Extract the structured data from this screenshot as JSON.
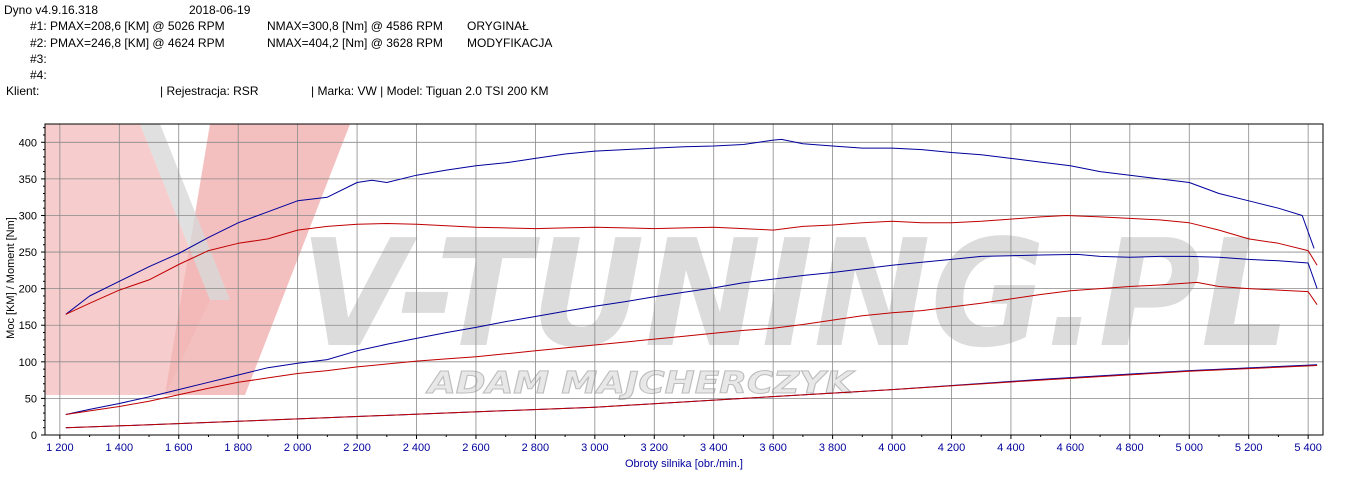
{
  "header": {
    "app_version": "Dyno v4.9.16.318",
    "date": "2018-06-19",
    "runs": [
      {
        "id": "#1:",
        "pmax": "PMAX=208,6 [KM] @ 5026 RPM",
        "nmax": "NMAX=300,8 [Nm] @ 4586 RPM",
        "name": "ORYGINAŁ"
      },
      {
        "id": "#2:",
        "pmax": "PMAX=246,8 [KM] @ 4624 RPM",
        "nmax": "NMAX=404,2 [Nm] @ 3628 RPM",
        "name": "MODYFIKACJA"
      },
      {
        "id": "#3:",
        "pmax": "",
        "nmax": "",
        "name": ""
      },
      {
        "id": "#4:",
        "pmax": "",
        "nmax": "",
        "name": ""
      }
    ],
    "client_label": "Klient:",
    "registration": "| Rejestracja: RSR",
    "vehicle": "| Marka: VW | Model: Tiguan 2.0 TSI 200 KM"
  },
  "watermark": {
    "brand_logo_text": "V-TUNING.PL",
    "tagline": "ADAM MAJCHERCZYK"
  },
  "chart_data": {
    "type": "line",
    "xlabel": "Obroty silnika [obr./min.]",
    "ylabel": "Moc [KM] / Moment [Nm]",
    "xlim": [
      1150,
      5450
    ],
    "ylim": [
      0,
      425
    ],
    "x_ticks": [
      1200,
      1400,
      1600,
      1800,
      2000,
      2200,
      2400,
      2600,
      2800,
      3000,
      3200,
      3400,
      3600,
      3800,
      4000,
      4200,
      4400,
      4600,
      4800,
      5000,
      5200,
      5400
    ],
    "x_tick_labels": [
      "1 200",
      "1 400",
      "1 600",
      "1 800",
      "2 000",
      "2 200",
      "2 400",
      "2 600",
      "2 800",
      "3 000",
      "3 200",
      "3 400",
      "3 600",
      "3 800",
      "4 000",
      "4 200",
      "4 400",
      "4 600",
      "4 800",
      "5 000",
      "5 200",
      "5 400"
    ],
    "y_ticks": [
      0,
      50,
      100,
      150,
      200,
      250,
      300,
      350,
      400
    ],
    "y_tick_labels": [
      "0",
      "50",
      "100",
      "150",
      "200",
      "250",
      "300",
      "350",
      "400"
    ],
    "grid": true,
    "colors": {
      "run1": "#c00000",
      "run2": "#00009c",
      "loss": "#7a1a8a"
    },
    "series": [
      {
        "name": "#2 Moment",
        "color": "#00009c",
        "x": [
          1220,
          1300,
          1400,
          1500,
          1600,
          1700,
          1800,
          1900,
          2000,
          2100,
          2200,
          2250,
          2300,
          2400,
          2500,
          2600,
          2700,
          2800,
          2900,
          3000,
          3100,
          3200,
          3300,
          3400,
          3500,
          3600,
          3628,
          3700,
          3800,
          3900,
          4000,
          4100,
          4200,
          4300,
          4400,
          4500,
          4600,
          4700,
          4800,
          4900,
          5000,
          5100,
          5200,
          5300,
          5380,
          5420
        ],
        "y": [
          165,
          190,
          210,
          230,
          248,
          270,
          290,
          305,
          320,
          325,
          345,
          348,
          345,
          355,
          362,
          368,
          372,
          378,
          384,
          388,
          390,
          392,
          394,
          395,
          397,
          403,
          404,
          398,
          395,
          392,
          392,
          390,
          386,
          383,
          378,
          373,
          368,
          360,
          355,
          350,
          345,
          330,
          320,
          310,
          300,
          255
        ]
      },
      {
        "name": "#1 Moment",
        "color": "#c00000",
        "x": [
          1220,
          1300,
          1400,
          1500,
          1600,
          1700,
          1800,
          1900,
          2000,
          2100,
          2200,
          2300,
          2400,
          2500,
          2600,
          2700,
          2800,
          2900,
          3000,
          3100,
          3200,
          3300,
          3400,
          3500,
          3600,
          3700,
          3800,
          3900,
          4000,
          4100,
          4200,
          4300,
          4400,
          4500,
          4586,
          4700,
          4800,
          4900,
          5000,
          5100,
          5200,
          5300,
          5400,
          5430
        ],
        "y": [
          165,
          180,
          198,
          212,
          233,
          252,
          262,
          268,
          280,
          285,
          288,
          289,
          288,
          286,
          284,
          283,
          282,
          283,
          284,
          283,
          282,
          283,
          284,
          282,
          280,
          285,
          287,
          290,
          292,
          290,
          290,
          292,
          295,
          298,
          300,
          298,
          296,
          294,
          290,
          280,
          268,
          262,
          252,
          232
        ]
      },
      {
        "name": "#2 Moc",
        "color": "#00009c",
        "x": [
          1220,
          1300,
          1400,
          1500,
          1600,
          1700,
          1800,
          1900,
          2000,
          2100,
          2200,
          2300,
          2400,
          2500,
          2600,
          2700,
          2800,
          2900,
          3000,
          3100,
          3200,
          3300,
          3400,
          3500,
          3600,
          3700,
          3800,
          3900,
          4000,
          4100,
          4200,
          4300,
          4400,
          4500,
          4624,
          4700,
          4800,
          4900,
          5000,
          5100,
          5200,
          5300,
          5400,
          5430
        ],
        "y": [
          28,
          35,
          43,
          52,
          62,
          72,
          82,
          92,
          98,
          103,
          115,
          124,
          132,
          140,
          147,
          155,
          162,
          169,
          176,
          182,
          189,
          195,
          201,
          208,
          213,
          218,
          222,
          227,
          232,
          236,
          240,
          244,
          245,
          246,
          246.8,
          244,
          243,
          244,
          244,
          243,
          240,
          238,
          235,
          200
        ]
      },
      {
        "name": "#1 Moc",
        "color": "#c00000",
        "x": [
          1220,
          1300,
          1400,
          1500,
          1600,
          1700,
          1800,
          1900,
          2000,
          2100,
          2200,
          2300,
          2400,
          2500,
          2600,
          2700,
          2800,
          2900,
          3000,
          3100,
          3200,
          3300,
          3400,
          3500,
          3600,
          3700,
          3800,
          3900,
          4000,
          4100,
          4200,
          4300,
          4400,
          4500,
          4600,
          4700,
          4800,
          4900,
          5026,
          5100,
          5200,
          5300,
          5400,
          5430
        ],
        "y": [
          28,
          33,
          39,
          46,
          55,
          64,
          72,
          78,
          84,
          88,
          93,
          97,
          101,
          104,
          107,
          111,
          115,
          119,
          123,
          127,
          131,
          135,
          139,
          143,
          146,
          151,
          157,
          163,
          167,
          170,
          175,
          180,
          186,
          192,
          197,
          200,
          203,
          205,
          208.6,
          203,
          200,
          198,
          196,
          178
        ]
      },
      {
        "name": "#2 Straty",
        "color": "#00009c",
        "x": [
          1220,
          1500,
          2000,
          2500,
          3000,
          3500,
          4000,
          4500,
          5000,
          5430
        ],
        "y": [
          10,
          14,
          22,
          30,
          38,
          50,
          62,
          76,
          88,
          96
        ]
      },
      {
        "name": "#1 Straty",
        "color": "#c00000",
        "x": [
          1220,
          1500,
          2000,
          2500,
          3000,
          3500,
          4000,
          4500,
          5000,
          5430
        ],
        "y": [
          10,
          14,
          22,
          30,
          38,
          50,
          62,
          75,
          87,
          95
        ]
      }
    ]
  }
}
